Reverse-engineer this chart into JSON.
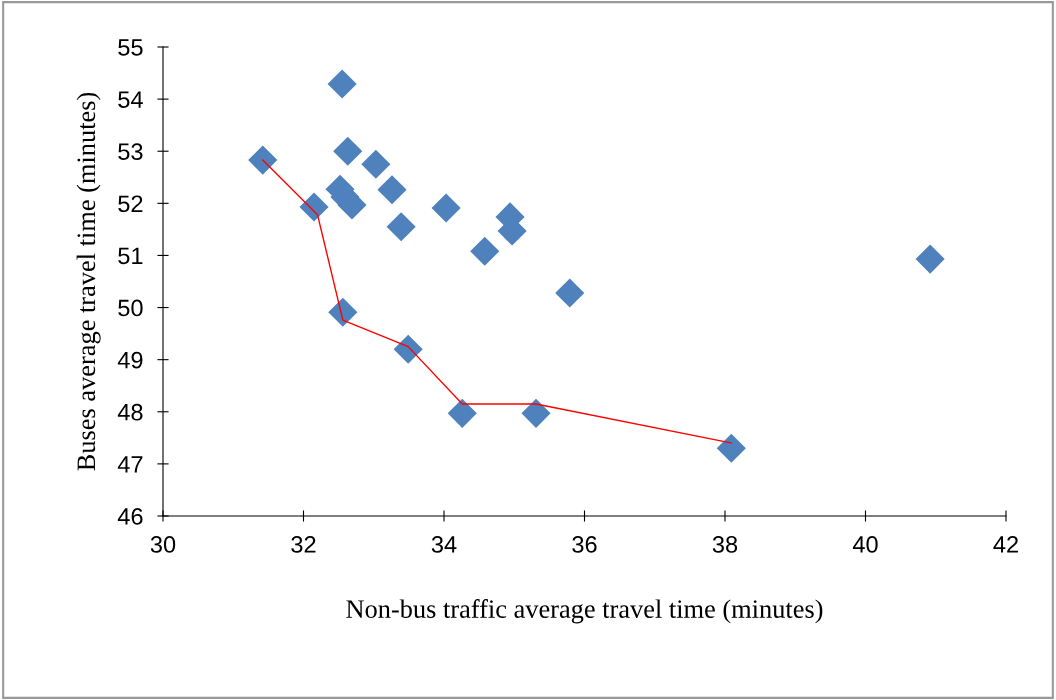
{
  "chart_data": {
    "type": "scatter",
    "xlabel": "Non-bus traffic average travel time (minutes)",
    "ylabel": "Buses average travel time (minutes)",
    "xlim": [
      30,
      42
    ],
    "xticks": [
      30,
      32,
      34,
      36,
      38,
      40,
      42
    ],
    "ylim": [
      46,
      55
    ],
    "yticks": [
      46,
      47,
      48,
      49,
      50,
      51,
      52,
      53,
      54,
      55
    ],
    "grid": false,
    "legend": false,
    "marker": "diamond",
    "series": [
      {
        "color": "#4f81bd",
        "x": [
          31.42,
          32.15,
          32.55,
          32.63,
          32.52,
          32.59,
          32.69,
          33.03,
          33.26,
          33.39,
          34.03,
          34.58,
          34.94,
          34.97,
          35.79,
          40.92,
          32.56,
          33.49,
          34.26,
          35.31,
          38.09
        ],
        "values": [
          52.83,
          51.93,
          54.29,
          53.0,
          52.27,
          52.12,
          51.97,
          52.75,
          52.26,
          51.55,
          51.91,
          51.08,
          51.74,
          51.47,
          50.28,
          50.93,
          49.91,
          49.2,
          47.97,
          47.97,
          47.3
        ]
      },
      {
        "type": "line",
        "color": "#ff0000",
        "marker": "none",
        "line_style": "solid",
        "x": [
          31.42,
          32.2,
          32.56,
          33.49,
          34.26,
          35.31,
          38.09
        ],
        "values": [
          52.83,
          51.78,
          49.76,
          49.25,
          48.15,
          48.15,
          47.4
        ]
      }
    ]
  }
}
